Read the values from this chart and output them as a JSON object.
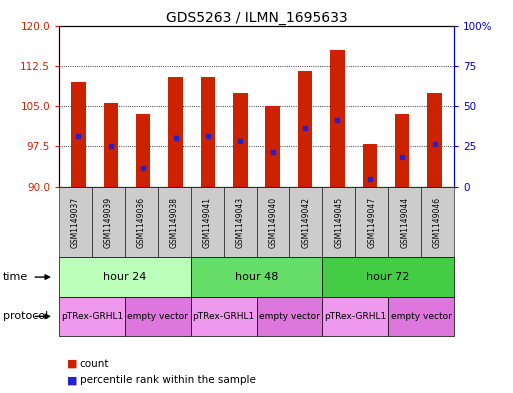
{
  "title": "GDS5263 / ILMN_1695633",
  "samples": [
    "GSM1149037",
    "GSM1149039",
    "GSM1149036",
    "GSM1149038",
    "GSM1149041",
    "GSM1149043",
    "GSM1149040",
    "GSM1149042",
    "GSM1149045",
    "GSM1149047",
    "GSM1149044",
    "GSM1149046"
  ],
  "bar_heights": [
    109.5,
    105.5,
    103.5,
    110.5,
    110.5,
    107.5,
    105.0,
    111.5,
    115.5,
    98.0,
    103.5,
    107.5
  ],
  "blue_dot_y": [
    99.5,
    97.5,
    93.5,
    99.0,
    99.5,
    98.5,
    96.5,
    101.0,
    102.5,
    91.5,
    95.5,
    98.0
  ],
  "ylim_left": [
    90,
    120
  ],
  "ylim_right": [
    0,
    100
  ],
  "yticks_left": [
    90,
    97.5,
    105,
    112.5,
    120
  ],
  "yticks_right": [
    0,
    25,
    50,
    75,
    100
  ],
  "ytick_right_labels": [
    "0",
    "25",
    "50",
    "75",
    "100%"
  ],
  "bar_color": "#cc2200",
  "dot_color": "#2222cc",
  "bar_bottom": 90,
  "time_groups": [
    {
      "label": "hour 24",
      "start": 0,
      "end": 4,
      "color": "#bbffbb"
    },
    {
      "label": "hour 48",
      "start": 4,
      "end": 8,
      "color": "#66dd66"
    },
    {
      "label": "hour 72",
      "start": 8,
      "end": 12,
      "color": "#44cc44"
    }
  ],
  "protocol_groups": [
    {
      "label": "pTRex-GRHL1",
      "start": 0,
      "end": 2,
      "color": "#ee99ee"
    },
    {
      "label": "empty vector",
      "start": 2,
      "end": 4,
      "color": "#dd77dd"
    },
    {
      "label": "pTRex-GRHL1",
      "start": 4,
      "end": 6,
      "color": "#ee99ee"
    },
    {
      "label": "empty vector",
      "start": 6,
      "end": 8,
      "color": "#dd77dd"
    },
    {
      "label": "pTRex-GRHL1",
      "start": 8,
      "end": 10,
      "color": "#ee99ee"
    },
    {
      "label": "empty vector",
      "start": 10,
      "end": 12,
      "color": "#dd77dd"
    }
  ],
  "background_color": "#ffffff",
  "axis_label_color_left": "#cc2200",
  "axis_label_color_right": "#0000cc",
  "xtick_bg": "#cccccc"
}
